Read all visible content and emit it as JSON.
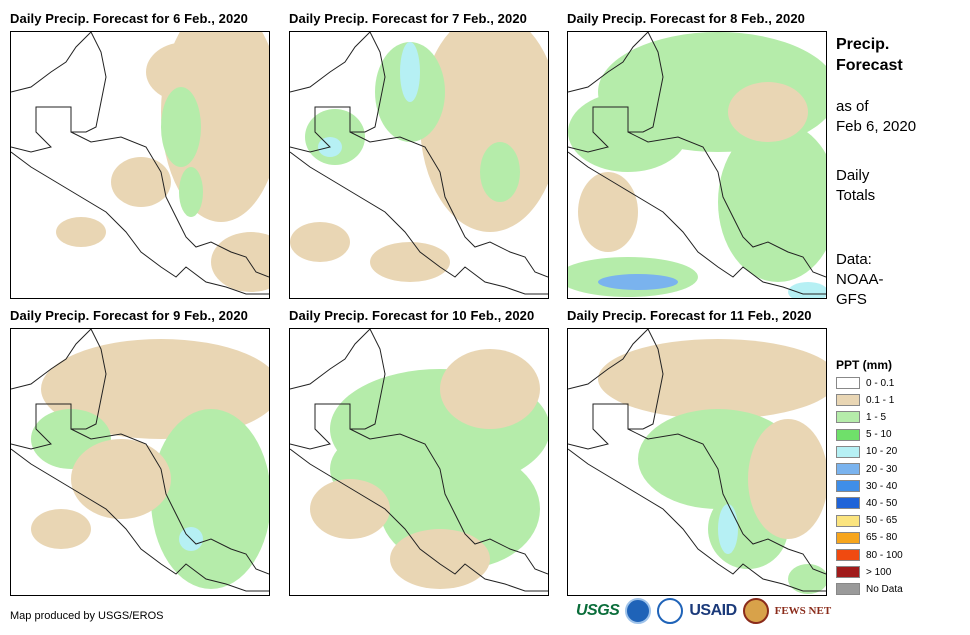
{
  "panels": [
    {
      "title": "Daily Precip. Forecast for 6 Feb., 2020"
    },
    {
      "title": "Daily Precip. Forecast for 7 Feb., 2020"
    },
    {
      "title": "Daily Precip. Forecast for 8 Feb., 2020"
    },
    {
      "title": "Daily Precip. Forecast for 9 Feb., 2020"
    },
    {
      "title": "Daily Precip. Forecast for 10 Feb., 2020"
    },
    {
      "title": "Daily Precip. Forecast for 11 Feb., 2020"
    }
  ],
  "sidebar": {
    "heading_line1": "Precip.",
    "heading_line2": "Forecast",
    "asof_line1": "as of",
    "asof_line2": "Feb 6, 2020",
    "daily_line1": "Daily",
    "daily_line2": "Totals",
    "data_line1": "Data:",
    "data_line2": "NOAA-",
    "data_line3": "GFS"
  },
  "legend": {
    "title": "PPT (mm)",
    "items": [
      {
        "label": "0 - 0.1",
        "color": "#ffffff"
      },
      {
        "label": "0.1 - 1",
        "color": "#e9d6b4"
      },
      {
        "label": "1 - 5",
        "color": "#b5ecaa"
      },
      {
        "label": "5 - 10",
        "color": "#6fe06a"
      },
      {
        "label": "10 - 20",
        "color": "#b6f0f4"
      },
      {
        "label": "20 - 30",
        "color": "#7ab3ee"
      },
      {
        "label": "30 - 40",
        "color": "#3f8ee8"
      },
      {
        "label": "40 - 50",
        "color": "#1f63d8"
      },
      {
        "label": "50 - 65",
        "color": "#fbe47f"
      },
      {
        "label": "65 - 80",
        "color": "#f7a51c"
      },
      {
        "label": "80 - 100",
        "color": "#f04a10"
      },
      {
        "label": "> 100",
        "color": "#a01b1b"
      },
      {
        "label": "No Data",
        "color": "#9a9a9a"
      }
    ]
  },
  "credit": "Map produced by USGS/EROS",
  "logos": {
    "usgs": "USGS",
    "usaid": "USAID",
    "fews": "FEWS NET"
  }
}
